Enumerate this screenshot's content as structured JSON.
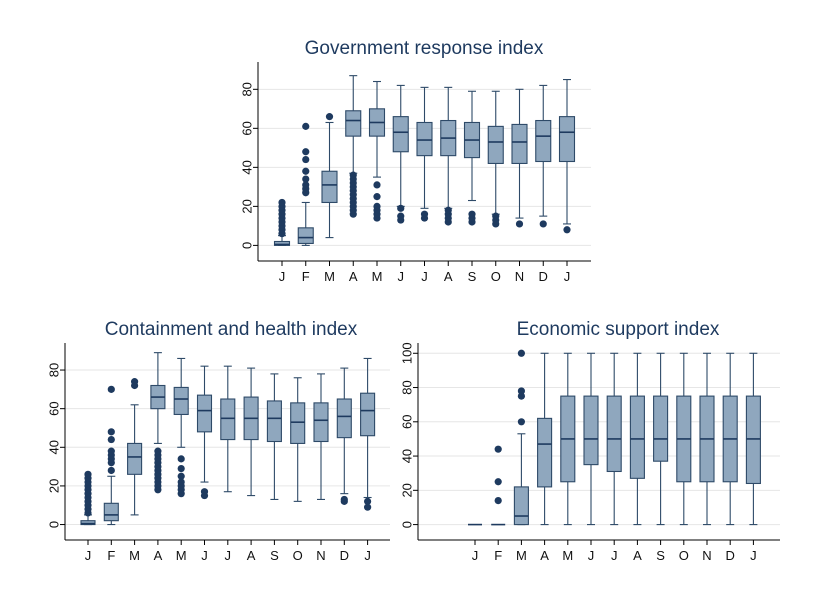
{
  "chart_data": [
    {
      "type": "box",
      "title": "Government response index",
      "categories": [
        "J",
        "F",
        "M",
        "A",
        "M",
        "J",
        "J",
        "A",
        "S",
        "O",
        "N",
        "D",
        "J"
      ],
      "ylim": [
        -8,
        94
      ],
      "yticks": [
        0,
        20,
        40,
        60,
        80
      ],
      "grid": true,
      "boxes": [
        {
          "min": 0,
          "q1": 0,
          "median": 0.5,
          "q3": 2,
          "max": 5,
          "outliers": [
            6,
            8,
            10,
            12,
            14,
            16,
            18,
            20,
            22
          ]
        },
        {
          "min": 0,
          "q1": 1,
          "median": 4,
          "q3": 9,
          "max": 22,
          "outliers": [
            27,
            29,
            31,
            34,
            38,
            44,
            48,
            61
          ]
        },
        {
          "min": 4,
          "q1": 22,
          "median": 31,
          "q3": 38,
          "max": 63,
          "outliers": [
            66
          ]
        },
        {
          "min": 37,
          "q1": 56,
          "median": 64,
          "q3": 69,
          "max": 87,
          "outliers": [
            16,
            18,
            20,
            22,
            24,
            26,
            28,
            30,
            32,
            34,
            36
          ]
        },
        {
          "min": 35,
          "q1": 56,
          "median": 63,
          "q3": 70,
          "max": 84,
          "outliers": [
            14,
            16,
            18,
            20,
            25,
            31
          ]
        },
        {
          "min": 20,
          "q1": 48,
          "median": 58,
          "q3": 66,
          "max": 82,
          "outliers": [
            13,
            15,
            19
          ]
        },
        {
          "min": 19,
          "q1": 46,
          "median": 54,
          "q3": 63,
          "max": 81,
          "outliers": [
            14,
            16
          ]
        },
        {
          "min": 19,
          "q1": 46,
          "median": 55,
          "q3": 64,
          "max": 81,
          "outliers": [
            12,
            14,
            16,
            18
          ]
        },
        {
          "min": 23,
          "q1": 45,
          "median": 54,
          "q3": 63,
          "max": 79,
          "outliers": [
            12,
            14,
            16
          ]
        },
        {
          "min": 16,
          "q1": 42,
          "median": 53,
          "q3": 61,
          "max": 79,
          "outliers": [
            11,
            13,
            15
          ]
        },
        {
          "min": 14,
          "q1": 42,
          "median": 53,
          "q3": 62,
          "max": 80,
          "outliers": [
            11
          ]
        },
        {
          "min": 15,
          "q1": 43,
          "median": 56,
          "q3": 64,
          "max": 82,
          "outliers": [
            11
          ]
        },
        {
          "min": 11,
          "q1": 43,
          "median": 58,
          "q3": 66,
          "max": 85,
          "outliers": [
            8
          ]
        }
      ]
    },
    {
      "type": "box",
      "title": "Containment and health index",
      "categories": [
        "J",
        "F",
        "M",
        "A",
        "M",
        "J",
        "J",
        "A",
        "S",
        "O",
        "N",
        "D",
        "J"
      ],
      "ylim": [
        -8,
        94
      ],
      "yticks": [
        0,
        20,
        40,
        60,
        80
      ],
      "grid": true,
      "boxes": [
        {
          "min": 0,
          "q1": 0,
          "median": 0.5,
          "q3": 2,
          "max": 5,
          "outliers": [
            6,
            8,
            10,
            12,
            14,
            16,
            18,
            20,
            22,
            24,
            26
          ]
        },
        {
          "min": 0,
          "q1": 2,
          "median": 5,
          "q3": 11,
          "max": 25,
          "outliers": [
            28,
            32,
            34,
            36,
            38,
            44,
            48,
            70
          ]
        },
        {
          "min": 5,
          "q1": 26,
          "median": 35,
          "q3": 42,
          "max": 62,
          "outliers": [
            72,
            74
          ]
        },
        {
          "min": 42,
          "q1": 60,
          "median": 66,
          "q3": 72,
          "max": 89,
          "outliers": [
            18,
            20,
            22,
            24,
            26,
            28,
            30,
            32,
            34,
            36,
            38
          ]
        },
        {
          "min": 40,
          "q1": 57,
          "median": 65,
          "q3": 71,
          "max": 86,
          "outliers": [
            16,
            18,
            20,
            22,
            25,
            29,
            34
          ]
        },
        {
          "min": 22,
          "q1": 48,
          "median": 59,
          "q3": 67,
          "max": 82,
          "outliers": [
            15,
            17
          ]
        },
        {
          "min": 17,
          "q1": 44,
          "median": 55,
          "q3": 65,
          "max": 82,
          "outliers": []
        },
        {
          "min": 15,
          "q1": 44,
          "median": 55,
          "q3": 66,
          "max": 81,
          "outliers": []
        },
        {
          "min": 13,
          "q1": 43,
          "median": 55,
          "q3": 64,
          "max": 78,
          "outliers": []
        },
        {
          "min": 12,
          "q1": 42,
          "median": 53,
          "q3": 63,
          "max": 76,
          "outliers": []
        },
        {
          "min": 13,
          "q1": 43,
          "median": 54,
          "q3": 63,
          "max": 78,
          "outliers": []
        },
        {
          "min": 16,
          "q1": 45,
          "median": 56,
          "q3": 65,
          "max": 81,
          "outliers": [
            12,
            13
          ]
        },
        {
          "min": 14,
          "q1": 46,
          "median": 59,
          "q3": 68,
          "max": 86,
          "outliers": [
            9,
            12
          ]
        }
      ]
    },
    {
      "type": "box",
      "title": "Economic support index",
      "categories": [
        "J",
        "F",
        "M",
        "A",
        "M",
        "J",
        "J",
        "A",
        "S",
        "O",
        "N",
        "D",
        "J"
      ],
      "ylim": [
        -9,
        106
      ],
      "yticks": [
        0,
        20,
        40,
        60,
        80,
        100
      ],
      "grid": true,
      "boxes": [
        {
          "min": 0,
          "q1": 0,
          "median": 0,
          "q3": 0,
          "max": 0,
          "outliers": []
        },
        {
          "min": 0,
          "q1": 0,
          "median": 0,
          "q3": 0,
          "max": 0,
          "outliers": [
            14,
            25,
            44
          ]
        },
        {
          "min": 0,
          "q1": 0,
          "median": 5,
          "q3": 22,
          "max": 53,
          "outliers": [
            60,
            75,
            78,
            100
          ]
        },
        {
          "min": 0,
          "q1": 22,
          "median": 47,
          "q3": 62,
          "max": 100,
          "outliers": []
        },
        {
          "min": 0,
          "q1": 25,
          "median": 50,
          "q3": 75,
          "max": 100,
          "outliers": []
        },
        {
          "min": 0,
          "q1": 35,
          "median": 50,
          "q3": 75,
          "max": 100,
          "outliers": []
        },
        {
          "min": 0,
          "q1": 31,
          "median": 50,
          "q3": 75,
          "max": 100,
          "outliers": []
        },
        {
          "min": 0,
          "q1": 27,
          "median": 50,
          "q3": 75,
          "max": 100,
          "outliers": []
        },
        {
          "min": 0,
          "q1": 37,
          "median": 50,
          "q3": 75,
          "max": 100,
          "outliers": []
        },
        {
          "min": 0,
          "q1": 25,
          "median": 50,
          "q3": 75,
          "max": 100,
          "outliers": []
        },
        {
          "min": 0,
          "q1": 25,
          "median": 50,
          "q3": 75,
          "max": 100,
          "outliers": []
        },
        {
          "min": 0,
          "q1": 25,
          "median": 50,
          "q3": 75,
          "max": 100,
          "outliers": []
        },
        {
          "min": 0,
          "q1": 24,
          "median": 50,
          "q3": 75,
          "max": 100,
          "outliers": []
        }
      ]
    }
  ]
}
